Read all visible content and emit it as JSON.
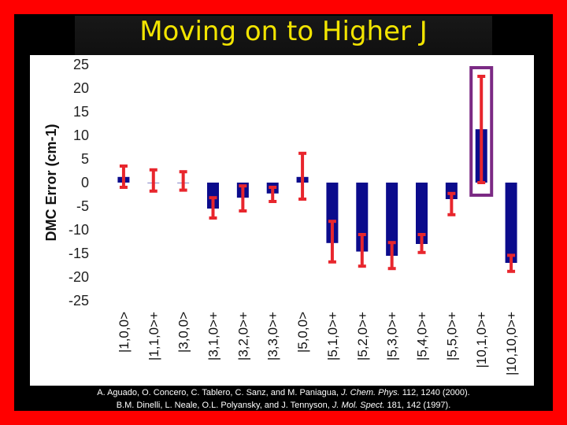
{
  "slide": {
    "title": "Moving on to Higher J",
    "citations": [
      {
        "pre": "A. Aguado, O. Concero, C. Tablero, C. Sanz, and M. Paniagua, ",
        "journal": "J. Chem. Phys.",
        "post": " 112, 1240 (2000)."
      },
      {
        "pre": "B.M. Dinelli, L. Neale, O.L. Polyansky, and J. Tennyson, ",
        "journal": "J. Mol. Spect.",
        "post": " 181, 142 (1997)."
      }
    ]
  },
  "colors": {
    "background_border": "#ff0000",
    "title": "#f2e400",
    "bar": "#0b0b8c",
    "error_bar": "#e8262d",
    "highlight_box": "#7b2a84"
  },
  "chart_data": {
    "type": "bar",
    "ylabel": "DMC Error (cm-1)",
    "ylim": [
      -25,
      25
    ],
    "yticks": [
      25,
      20,
      15,
      10,
      5,
      0,
      -5,
      -10,
      -15,
      -20,
      -25
    ],
    "grid": false,
    "categories": [
      "|1,0,0>",
      "|1,1,0>+",
      "|3,0,0>",
      "|3,1,0>+",
      "|3,2,0>+",
      "|3,3,0>+",
      "|5,0,0>",
      "|5,1,0>+",
      "|5,2,0>+",
      "|5,3,0>+",
      "|5,4,0>+",
      "|5,5,0>+",
      "|10,1,0>+",
      "|10,10,0>+"
    ],
    "values": [
      1.2,
      0.0,
      0.0,
      -5.5,
      -3.2,
      -2.3,
      1.2,
      -12.8,
      -14.6,
      -15.5,
      -13.0,
      -3.5,
      11.3,
      -17.0
    ],
    "error_low": [
      -1.0,
      -1.8,
      -1.6,
      -7.5,
      -6.0,
      -4.0,
      -3.5,
      -16.8,
      -17.7,
      -18.2,
      -14.8,
      -6.8,
      0.0,
      -18.8
    ],
    "error_high": [
      3.5,
      2.7,
      2.3,
      -3.2,
      -0.7,
      -1.0,
      6.2,
      -8.2,
      -11.0,
      -12.7,
      -11.0,
      -2.3,
      22.5,
      -15.4
    ],
    "highlighted_category": "|10,1,0>+"
  }
}
